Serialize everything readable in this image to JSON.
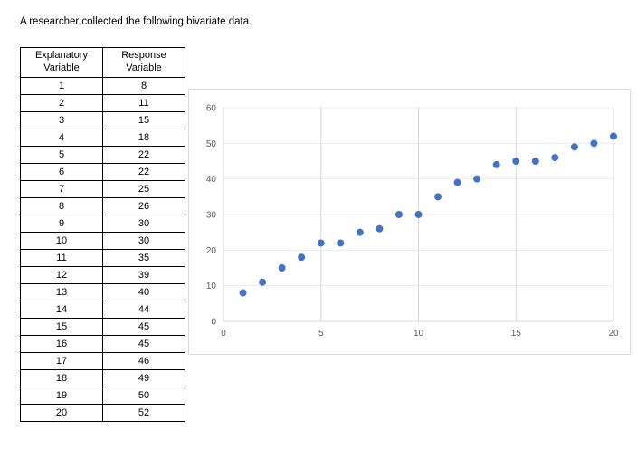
{
  "page": {
    "title": "A researcher collected the following bivariate data."
  },
  "table": {
    "headers": [
      "Explanatory Variable",
      "Response Variable"
    ],
    "rows": [
      [
        1,
        8
      ],
      [
        2,
        11
      ],
      [
        3,
        15
      ],
      [
        4,
        18
      ],
      [
        5,
        22
      ],
      [
        6,
        22
      ],
      [
        7,
        25
      ],
      [
        8,
        26
      ],
      [
        9,
        30
      ],
      [
        10,
        30
      ],
      [
        11,
        35
      ],
      [
        12,
        39
      ],
      [
        13,
        40
      ],
      [
        14,
        44
      ],
      [
        15,
        45
      ],
      [
        16,
        45
      ],
      [
        17,
        46
      ],
      [
        18,
        49
      ],
      [
        19,
        50
      ],
      [
        20,
        52
      ]
    ]
  },
  "chart_data": {
    "type": "scatter",
    "title": "",
    "xlabel": "",
    "ylabel": "",
    "x": [
      1,
      2,
      3,
      4,
      5,
      6,
      7,
      8,
      9,
      10,
      11,
      12,
      13,
      14,
      15,
      16,
      17,
      18,
      19,
      20
    ],
    "y": [
      8,
      11,
      15,
      18,
      22,
      22,
      25,
      26,
      30,
      30,
      35,
      39,
      40,
      44,
      45,
      45,
      46,
      49,
      50,
      52
    ],
    "xlim": [
      0,
      20
    ],
    "ylim": [
      0,
      60
    ],
    "x_ticks": [
      0,
      5,
      10,
      15,
      20
    ],
    "y_ticks": [
      0,
      10,
      20,
      30,
      40,
      50,
      60
    ],
    "grid": "both",
    "legend": "none",
    "marker_color": "#4472C4",
    "gridline_color": "#d9d9d9",
    "tick_label_color": "#595959"
  }
}
